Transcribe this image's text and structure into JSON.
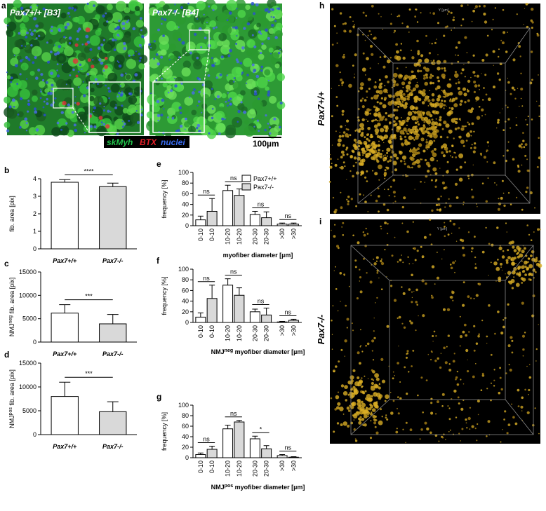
{
  "figure": {
    "a": {
      "label": "a",
      "left_title": "Pax7+/+ [B3]",
      "right_title": "Pax7-/- [B4]",
      "stains": [
        "skMyh",
        "BTX",
        "nuclei"
      ],
      "scale_bar": "100µm"
    },
    "h": {
      "label": "h",
      "side_label": "Pax7+/+",
      "axis_label": "Y [µm]"
    },
    "i": {
      "label": "i",
      "side_label": "Pax7-/-",
      "axis_label": "Y [µm]"
    }
  },
  "chart_data": [
    {
      "type": "bar",
      "label": "b",
      "ylabel": "fib. area [pix]",
      "categories": [
        "Pax7+/+",
        "Pax7-/-"
      ],
      "values": [
        3.8,
        3.55
      ],
      "errors": [
        0.15,
        0.2
      ],
      "colors": [
        "#ffffff",
        "#d9d9d9"
      ],
      "ylim": [
        0,
        4
      ],
      "yticks": [
        0,
        1,
        2,
        3,
        4
      ],
      "annotations": [
        "****"
      ]
    },
    {
      "type": "bar",
      "label": "c",
      "ylabel": [
        "NMJ",
        "neg",
        " fib. area [pix]"
      ],
      "categories": [
        "Pax7+/+",
        "Pax7-/-"
      ],
      "values": [
        6200,
        3900
      ],
      "errors": [
        1800,
        2000
      ],
      "colors": [
        "#ffffff",
        "#d9d9d9"
      ],
      "ylim": [
        0,
        15000
      ],
      "yticks": [
        0,
        5000,
        10000,
        15000
      ],
      "annotations": [
        "***"
      ]
    },
    {
      "type": "bar",
      "label": "d",
      "ylabel": [
        "NMJ",
        "pos",
        " fib. area [pix]"
      ],
      "categories": [
        "Pax7+/+",
        "Pax7-/-"
      ],
      "values": [
        8000,
        4800
      ],
      "errors": [
        3000,
        2100
      ],
      "colors": [
        "#ffffff",
        "#d9d9d9"
      ],
      "ylim": [
        0,
        15000
      ],
      "yticks": [
        0,
        5000,
        10000,
        15000
      ],
      "annotations": [
        "***"
      ]
    },
    {
      "type": "grouped_bar",
      "label": "e",
      "ylabel": "frequency [%]",
      "xlabel": "myofiber diameter [µm]",
      "categories": [
        "0-10",
        "10-20",
        "20-30",
        ">30"
      ],
      "series": [
        {
          "name": "Pax7+/+",
          "color": "#ffffff",
          "values": [
            11,
            66,
            21,
            3
          ],
          "errors": [
            7,
            10,
            6,
            2
          ]
        },
        {
          "name": "Pax7-/-",
          "color": "#d9d9d9",
          "values": [
            27,
            57,
            15,
            3
          ],
          "errors": [
            24,
            12,
            11,
            2
          ]
        }
      ],
      "ylim": [
        0,
        100
      ],
      "yticks": [
        0,
        20,
        40,
        60,
        80,
        100
      ],
      "annotations": [
        "ns",
        "ns",
        "ns",
        "ns"
      ]
    },
    {
      "type": "grouped_bar",
      "label": "f",
      "ylabel": "frequency [%]",
      "xlabel": [
        "NMJ",
        "neg",
        " myofiber diameter [µm]"
      ],
      "categories": [
        "0-10",
        "10-20",
        "20-30",
        ">30"
      ],
      "series": [
        {
          "color": "#ffffff",
          "values": [
            10,
            70,
            20,
            1
          ],
          "errors": [
            8,
            12,
            5,
            1
          ]
        },
        {
          "color": "#d9d9d9",
          "values": [
            45,
            51,
            14,
            4
          ],
          "errors": [
            25,
            14,
            13,
            2
          ]
        }
      ],
      "ylim": [
        0,
        100
      ],
      "yticks": [
        0,
        20,
        40,
        60,
        80,
        100
      ],
      "annotations": [
        "ns",
        "ns",
        "ns",
        "ns"
      ]
    },
    {
      "type": "grouped_bar",
      "label": "g",
      "ylabel": "frequency [%]",
      "xlabel": [
        "NMJ",
        "pos",
        " myofiber diameter [µm]"
      ],
      "categories": [
        "0-10",
        "10-20",
        "20-30",
        ">30"
      ],
      "series": [
        {
          "color": "#ffffff",
          "values": [
            6,
            55,
            36,
            4
          ],
          "errors": [
            3,
            7,
            5,
            2
          ]
        },
        {
          "color": "#d9d9d9",
          "values": [
            16,
            68,
            17,
            1
          ],
          "errors": [
            6,
            3,
            6,
            1
          ]
        }
      ],
      "ylim": [
        0,
        100
      ],
      "yticks": [
        0,
        20,
        40,
        60,
        80,
        100
      ],
      "annotations": [
        "ns",
        "ns",
        "*",
        "ns"
      ]
    }
  ]
}
